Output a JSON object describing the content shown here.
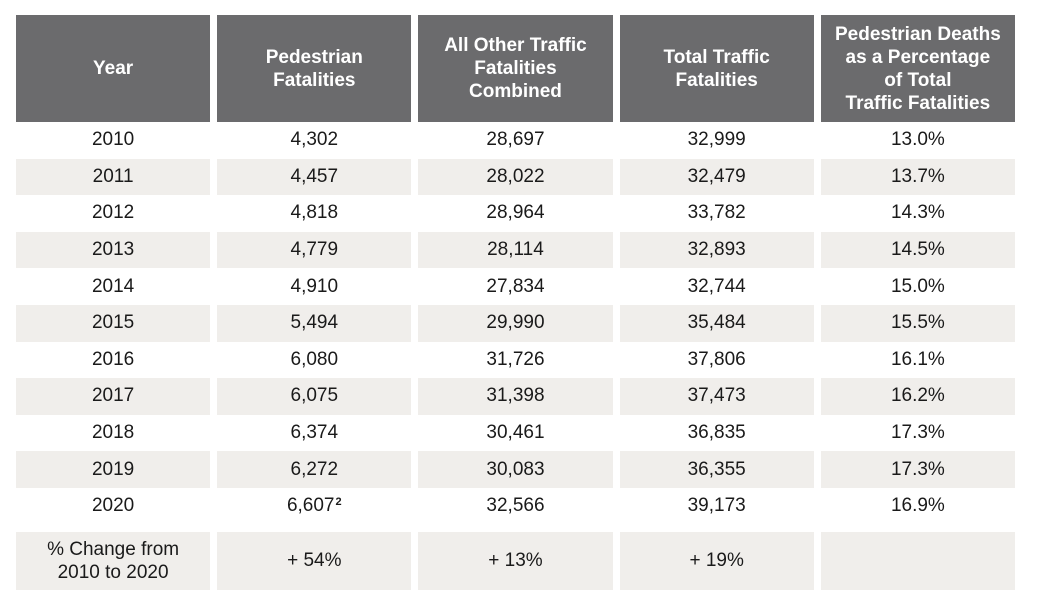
{
  "headers": [
    "Year",
    "Pedestrian\nFatalities",
    "All Other Traffic\nFatalities\nCombined",
    "Total Traffic\nFatalities",
    "Pedestrian Deaths\nas a Percentage\nof Total\nTraffic Fatalities"
  ],
  "rows": [
    [
      "2010",
      "4,302",
      "28,697",
      "32,999",
      "13.0%"
    ],
    [
      "2011",
      "4,457",
      "28,022",
      "32,479",
      "13.7%"
    ],
    [
      "2012",
      "4,818",
      "28,964",
      "33,782",
      "14.3%"
    ],
    [
      "2013",
      "4,779",
      "28,114",
      "32,893",
      "14.5%"
    ],
    [
      "2014",
      "4,910",
      "27,834",
      "32,744",
      "15.0%"
    ],
    [
      "2015",
      "5,494",
      "29,990",
      "35,484",
      "15.5%"
    ],
    [
      "2016",
      "6,080",
      "31,726",
      "37,806",
      "16.1%"
    ],
    [
      "2017",
      "6,075",
      "31,398",
      "37,473",
      "16.2%"
    ],
    [
      "2018",
      "6,374",
      "30,461",
      "36,835",
      "17.3%"
    ],
    [
      "2019",
      "6,272",
      "30,083",
      "36,355",
      "17.3%"
    ],
    [
      "2020",
      "6,607",
      "32,566",
      "39,173",
      "16.9%"
    ]
  ],
  "footnote_2020_ped": "2",
  "summary": [
    "% Change from\n2010 to 2020",
    "+ 54%",
    "+ 13%",
    "+ 19%",
    ""
  ],
  "colors": {
    "header_bg": "#6b6b6d",
    "header_text": "#ffffff",
    "stripe": "#f0eeeb"
  }
}
